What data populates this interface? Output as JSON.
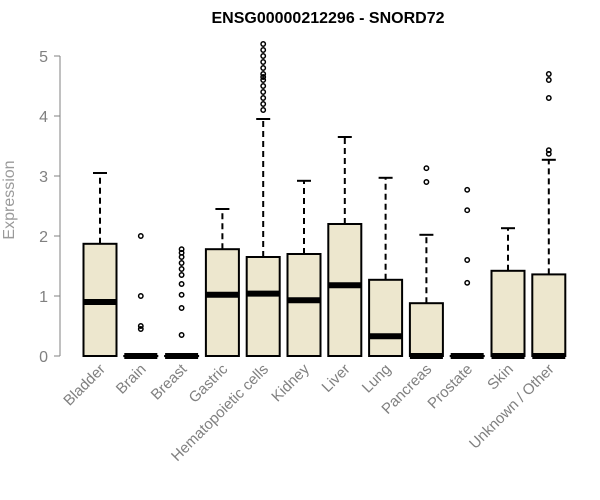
{
  "chart_data": {
    "type": "boxplot",
    "title": "ENSG00000212296 - SNORD72",
    "xlabel": "",
    "ylabel": "Expression",
    "ylim": [
      0,
      5
    ],
    "yticks": [
      0,
      1,
      2,
      3,
      4,
      5
    ],
    "grid": false,
    "box_fill": "#EDE7CE",
    "categories": [
      "Bladder",
      "Brain",
      "Breast",
      "Gastric",
      "Hematopoietic cells",
      "Kidney",
      "Liver",
      "Lung",
      "Pancreas",
      "Prostate",
      "Skin",
      "Unknown / Other"
    ],
    "boxes": [
      {
        "min": 0,
        "q1": 0,
        "median": 0.9,
        "q3": 1.87,
        "max": 3.05,
        "outliers": []
      },
      {
        "min": 0,
        "q1": 0,
        "median": 0,
        "q3": 0,
        "max": 0,
        "outliers": [
          0.45,
          0.5,
          1.0,
          2.0
        ]
      },
      {
        "min": 0,
        "q1": 0,
        "median": 0,
        "q3": 0,
        "max": 0,
        "outliers": [
          0.35,
          0.8,
          1.02,
          1.2,
          1.35,
          1.45,
          1.55,
          1.65,
          1.72,
          1.78
        ]
      },
      {
        "min": 0,
        "q1": 0,
        "median": 1.02,
        "q3": 1.78,
        "max": 2.45,
        "outliers": []
      },
      {
        "min": 0,
        "q1": 0,
        "median": 1.04,
        "q3": 1.65,
        "max": 3.95,
        "outliers": [
          4.1,
          4.2,
          4.3,
          4.4,
          4.5,
          4.6,
          4.65,
          4.7,
          4.8,
          4.9,
          5.0,
          5.1,
          5.2
        ]
      },
      {
        "min": 0,
        "q1": 0,
        "median": 0.93,
        "q3": 1.7,
        "max": 2.92,
        "outliers": []
      },
      {
        "min": 0,
        "q1": 0,
        "median": 1.18,
        "q3": 2.2,
        "max": 3.65,
        "outliers": []
      },
      {
        "min": 0,
        "q1": 0,
        "median": 0.33,
        "q3": 1.27,
        "max": 2.97,
        "outliers": []
      },
      {
        "min": 0,
        "q1": 0,
        "median": 0,
        "q3": 0.88,
        "max": 2.02,
        "outliers": [
          2.9,
          3.13
        ]
      },
      {
        "min": 0,
        "q1": 0,
        "median": 0,
        "q3": 0,
        "max": 0,
        "outliers": [
          1.22,
          1.6,
          2.43,
          2.77
        ]
      },
      {
        "min": 0,
        "q1": 0,
        "median": 0,
        "q3": 1.42,
        "max": 2.13,
        "outliers": []
      },
      {
        "min": 0,
        "q1": 0,
        "median": 0,
        "q3": 1.36,
        "max": 3.27,
        "outliers": [
          3.37,
          3.43,
          4.3,
          4.6,
          4.7
        ]
      }
    ]
  }
}
